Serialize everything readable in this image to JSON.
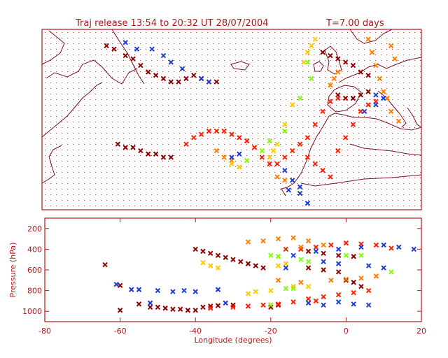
{
  "figure": {
    "title": "Traj release 13:54 to 20:32 UT 28/07/2004",
    "subtitle": "T=7.00 days"
  },
  "colors": {
    "frame": "#b01818",
    "coast": "#7a1020",
    "grid_dots": "#8a3a3a",
    "dark_red": "#8b0000",
    "red": "#ff2000",
    "orange": "#ff7f00",
    "yellow": "#ffc800",
    "green": "#80ff00",
    "blue": "#1e3cd2"
  },
  "chart_data": [
    {
      "type": "scatter",
      "name": "map-panel",
      "title": "",
      "xlabel": "",
      "ylabel": "",
      "marker": "x",
      "grid": "dotted",
      "lon_range": [
        -80,
        20
      ],
      "lat_range": [
        10,
        65
      ],
      "series": [
        {
          "color": "dark_red",
          "points": [
            [
              -63,
              60
            ],
            [
              -61,
              59
            ],
            [
              -58,
              57
            ],
            [
              -56,
              56
            ],
            [
              -54,
              54
            ],
            [
              -52,
              52
            ],
            [
              -50,
              51
            ],
            [
              -48,
              50
            ],
            [
              -46,
              49
            ],
            [
              -44,
              49
            ],
            [
              -42,
              50
            ],
            [
              -40,
              51
            ],
            [
              -38,
              50
            ],
            [
              -36,
              49
            ],
            [
              -34,
              49
            ],
            [
              -60,
              30
            ],
            [
              -58,
              29
            ],
            [
              -56,
              29
            ],
            [
              -54,
              28
            ],
            [
              -52,
              27
            ],
            [
              -50,
              27
            ],
            [
              -48,
              26
            ],
            [
              -46,
              26
            ],
            [
              -6,
              58
            ],
            [
              -4,
              57
            ],
            [
              -2,
              56
            ],
            [
              0,
              55
            ],
            [
              2,
              54
            ],
            [
              4,
              52
            ],
            [
              6,
              51
            ],
            [
              -2,
              45
            ],
            [
              0,
              44
            ],
            [
              2,
              44
            ],
            [
              4,
              45
            ],
            [
              6,
              46
            ]
          ]
        },
        {
          "color": "red",
          "points": [
            [
              -42,
              30
            ],
            [
              -40,
              32
            ],
            [
              -38,
              33
            ],
            [
              -36,
              34
            ],
            [
              -34,
              34
            ],
            [
              -32,
              34
            ],
            [
              -30,
              33
            ],
            [
              -28,
              32
            ],
            [
              -26,
              31
            ],
            [
              -24,
              29
            ],
            [
              -22,
              26
            ],
            [
              -20,
              24
            ],
            [
              -18,
              24
            ],
            [
              -16,
              26
            ],
            [
              -14,
              28
            ],
            [
              -12,
              30
            ],
            [
              -10,
              32
            ],
            [
              -8,
              36
            ],
            [
              -6,
              40
            ],
            [
              -4,
              43
            ],
            [
              -2,
              44
            ],
            [
              -10,
              26
            ],
            [
              -8,
              24
            ],
            [
              -6,
              22
            ],
            [
              -4,
              20
            ],
            [
              -2,
              28
            ],
            [
              0,
              32
            ],
            [
              2,
              36
            ],
            [
              4,
              40
            ],
            [
              6,
              42
            ],
            [
              8,
              43
            ]
          ]
        },
        {
          "color": "orange",
          "points": [
            [
              6,
              62
            ],
            [
              7,
              58
            ],
            [
              8,
              54
            ],
            [
              9,
              50
            ],
            [
              10,
              46
            ],
            [
              11,
              44
            ],
            [
              12,
              40
            ],
            [
              14,
              37
            ],
            [
              -2,
              52
            ],
            [
              -3,
              50
            ],
            [
              -4,
              48
            ],
            [
              12,
              60
            ],
            [
              13,
              56
            ],
            [
              -34,
              28
            ],
            [
              -32,
              26
            ],
            [
              -30,
              25
            ],
            [
              -18,
              20
            ],
            [
              -16,
              19
            ]
          ]
        },
        {
          "color": "yellow",
          "points": [
            [
              -8,
              62
            ],
            [
              -9,
              60
            ],
            [
              -10,
              58
            ],
            [
              -11,
              55
            ],
            [
              -14,
              42
            ],
            [
              -16,
              36
            ],
            [
              -18,
              30
            ],
            [
              -19,
              28
            ],
            [
              -20,
              26
            ],
            [
              -30,
              24
            ],
            [
              -28,
              23
            ]
          ]
        },
        {
          "color": "green",
          "points": [
            [
              -10,
              55
            ],
            [
              -9,
              50
            ],
            [
              -12,
              44
            ],
            [
              -16,
              34
            ],
            [
              -20,
              31
            ],
            [
              -22,
              28
            ],
            [
              -26,
              25
            ]
          ]
        },
        {
          "color": "blue",
          "points": [
            [
              -58,
              61
            ],
            [
              -55,
              59
            ],
            [
              -51,
              59
            ],
            [
              -48,
              57
            ],
            [
              -46,
              55
            ],
            [
              -43,
              53
            ],
            [
              -38,
              50
            ],
            [
              -36,
              49
            ],
            [
              -30,
              26
            ],
            [
              -28,
              27
            ],
            [
              -16,
              22
            ],
            [
              -14,
              19
            ],
            [
              -12,
              17
            ],
            [
              -10,
              12
            ],
            [
              -12,
              15
            ],
            [
              -15,
              16
            ],
            [
              10,
              44
            ],
            [
              8,
              45
            ],
            [
              5,
              40
            ],
            [
              8,
              42
            ]
          ]
        }
      ]
    },
    {
      "type": "scatter",
      "name": "pressure-panel",
      "title": "",
      "xlabel": "Longitude  (degrees)",
      "ylabel": "Pressure  (hPa)",
      "marker": "x",
      "xlim": [
        -80,
        20
      ],
      "ylim": [
        1100,
        100
      ],
      "x_ticks": [
        -80,
        -60,
        -40,
        -20,
        0,
        20
      ],
      "y_ticks": [
        200,
        400,
        600,
        800,
        1000
      ],
      "series": [
        {
          "color": "dark_red",
          "points": [
            [
              -64,
              550
            ],
            [
              -60,
              750
            ],
            [
              -60,
              990
            ],
            [
              -55,
              930
            ],
            [
              -52,
              960
            ],
            [
              -50,
              960
            ],
            [
              -48,
              970
            ],
            [
              -46,
              980
            ],
            [
              -44,
              980
            ],
            [
              -42,
              990
            ],
            [
              -40,
              990
            ],
            [
              -38,
              960
            ],
            [
              -36,
              950
            ],
            [
              -34,
              945
            ],
            [
              -30,
              940
            ],
            [
              -40,
              400
            ],
            [
              -38,
              420
            ],
            [
              -36,
              440
            ],
            [
              -34,
              460
            ],
            [
              -32,
              480
            ],
            [
              -30,
              500
            ],
            [
              -28,
              520
            ],
            [
              -26,
              540
            ],
            [
              -24,
              560
            ],
            [
              -22,
              580
            ],
            [
              -10,
              420
            ],
            [
              -6,
              440
            ],
            [
              -2,
              460
            ],
            [
              2,
              470
            ],
            [
              0,
              700
            ],
            [
              2,
              720
            ],
            [
              4,
              760
            ],
            [
              -10,
              580
            ],
            [
              -6,
              600
            ],
            [
              -2,
              620
            ],
            [
              -20,
              960
            ],
            [
              -18,
              940
            ]
          ]
        },
        {
          "color": "red",
          "points": [
            [
              -36,
              970
            ],
            [
              -30,
              960
            ],
            [
              -26,
              950
            ],
            [
              -22,
              940
            ],
            [
              -18,
              930
            ],
            [
              -14,
              910
            ],
            [
              -10,
              880
            ],
            [
              -6,
              860
            ],
            [
              -2,
              840
            ],
            [
              2,
              820
            ],
            [
              6,
              800
            ],
            [
              -16,
              400
            ],
            [
              -12,
              400
            ],
            [
              -8,
              380
            ],
            [
              -4,
              360
            ],
            [
              0,
              340
            ],
            [
              4,
              350
            ],
            [
              8,
              360
            ],
            [
              12,
              390
            ],
            [
              -20,
              940
            ],
            [
              -8,
              900
            ]
          ]
        },
        {
          "color": "orange",
          "points": [
            [
              -26,
              330
            ],
            [
              -22,
              320
            ],
            [
              -18,
              300
            ],
            [
              -14,
              290
            ],
            [
              -10,
              320
            ],
            [
              -6,
              360
            ],
            [
              -12,
              380
            ],
            [
              -4,
              700
            ],
            [
              0,
              690
            ],
            [
              4,
              680
            ],
            [
              8,
              660
            ],
            [
              -18,
              700
            ],
            [
              -12,
              720
            ]
          ]
        },
        {
          "color": "yellow",
          "points": [
            [
              -38,
              530
            ],
            [
              -36,
              560
            ],
            [
              -34,
              580
            ],
            [
              -26,
              830
            ],
            [
              -24,
              810
            ],
            [
              -20,
              800
            ],
            [
              -14,
              760
            ],
            [
              -10,
              760
            ],
            [
              -18,
              560
            ],
            [
              -16,
              540
            ]
          ]
        },
        {
          "color": "green",
          "points": [
            [
              -20,
              460
            ],
            [
              -18,
              470
            ],
            [
              -10,
              520
            ],
            [
              -12,
              500
            ],
            [
              -16,
              780
            ],
            [
              -14,
              780
            ],
            [
              0,
              460
            ],
            [
              4,
              460
            ],
            [
              12,
              620
            ],
            [
              -20,
              940
            ]
          ]
        },
        {
          "color": "blue",
          "points": [
            [
              -61,
              740
            ],
            [
              -57,
              790
            ],
            [
              -55,
              790
            ],
            [
              -50,
              800
            ],
            [
              -46,
              810
            ],
            [
              -43,
              800
            ],
            [
              -40,
              810
            ],
            [
              -34,
              790
            ],
            [
              -52,
              920
            ],
            [
              -32,
              920
            ],
            [
              -8,
              420
            ],
            [
              -2,
              400
            ],
            [
              4,
              380
            ],
            [
              10,
              360
            ],
            [
              14,
              380
            ],
            [
              18,
              400
            ],
            [
              -6,
              520
            ],
            [
              -2,
              540
            ],
            [
              6,
              560
            ],
            [
              10,
              580
            ],
            [
              -10,
              920
            ],
            [
              -6,
              940
            ],
            [
              -2,
              910
            ],
            [
              2,
              930
            ],
            [
              6,
              940
            ],
            [
              -14,
              460
            ],
            [
              -16,
              580
            ]
          ]
        }
      ]
    }
  ]
}
